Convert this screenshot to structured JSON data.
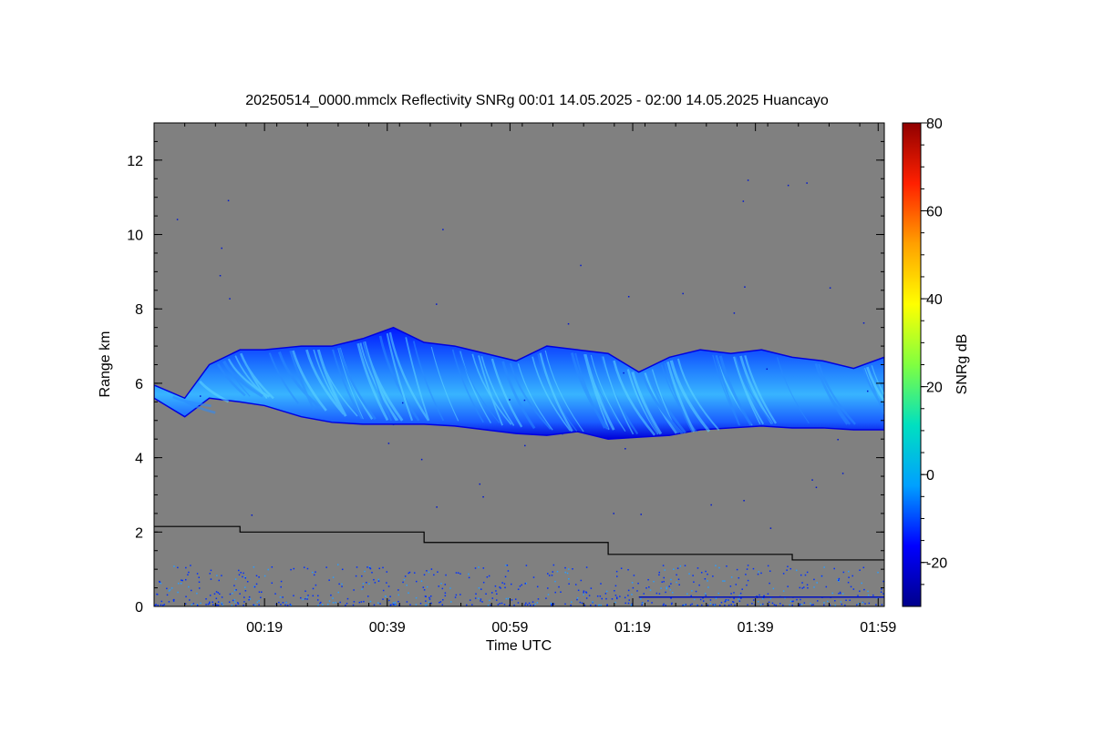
{
  "chart_data": {
    "type": "heatmap",
    "title": "20250514_0000.mmclx Reflectivity SNRg   00:01 14.05.2025 - 02:00 14.05.2025 Huancayo",
    "xlabel": "Time UTC",
    "ylabel": "Range km",
    "colorbar_label": "SNRg dB",
    "xlim_minutes": [
      1,
      120
    ],
    "ylim": [
      0,
      13
    ],
    "x_tick_labels": [
      "00:19",
      "00:39",
      "00:59",
      "01:19",
      "01:39",
      "01:59"
    ],
    "x_tick_minutes": [
      19,
      39,
      59,
      79,
      99,
      119
    ],
    "y_ticks": [
      0,
      2,
      4,
      6,
      8,
      10,
      12
    ],
    "y_tick_labels": [
      "0",
      "2",
      "4",
      "6",
      "8",
      "10",
      "12"
    ],
    "colorbar_range": [
      -30,
      80
    ],
    "colorbar_ticks": [
      -20,
      0,
      20,
      40,
      60,
      80
    ],
    "colorbar_tick_labels": [
      "-20",
      "0",
      "20",
      "40",
      "60",
      "80"
    ],
    "colormap": [
      "#00008b",
      "#0000ff",
      "#00a0ff",
      "#00e0c0",
      "#80ff40",
      "#ffff00",
      "#ffa000",
      "#ff2000",
      "#900000"
    ],
    "background_color": "#808080",
    "cloud_layer": {
      "time_min": [
        1,
        6,
        10,
        15,
        19,
        25,
        30,
        35,
        40,
        45,
        50,
        55,
        60,
        65,
        70,
        75,
        80,
        85,
        90,
        95,
        100,
        105,
        110,
        115,
        120
      ],
      "top_km": [
        5.95,
        5.6,
        6.5,
        6.9,
        6.9,
        7.0,
        7.0,
        7.2,
        7.5,
        7.1,
        7.0,
        6.8,
        6.6,
        7.0,
        6.9,
        6.8,
        6.3,
        6.7,
        6.9,
        6.8,
        6.9,
        6.7,
        6.6,
        6.4,
        6.7
      ],
      "base_km": [
        5.6,
        5.1,
        5.6,
        5.5,
        5.4,
        5.1,
        4.95,
        4.9,
        4.9,
        4.9,
        4.85,
        4.75,
        4.65,
        4.6,
        4.7,
        4.5,
        4.55,
        4.6,
        4.75,
        4.8,
        4.85,
        4.8,
        4.8,
        4.75,
        4.75
      ],
      "typical_snr_db": 0
    },
    "black_line": {
      "time_min": [
        1,
        15,
        15,
        45,
        45,
        75,
        75,
        105,
        105,
        120
      ],
      "range_km": [
        2.15,
        2.15,
        2.0,
        2.0,
        1.72,
        1.72,
        1.4,
        1.4,
        1.25,
        1.25
      ]
    }
  }
}
